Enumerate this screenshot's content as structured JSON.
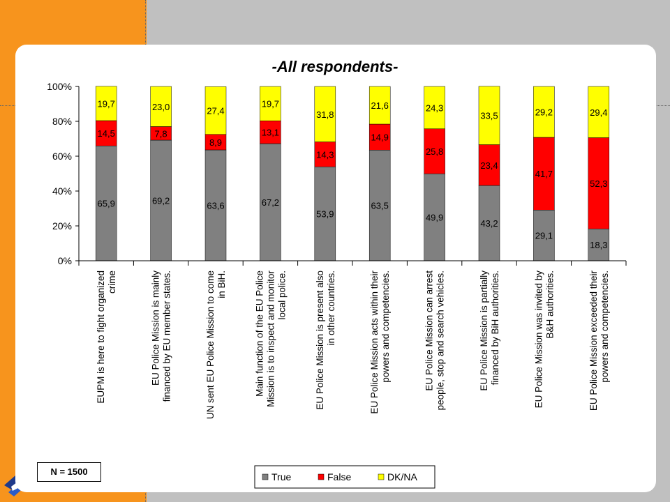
{
  "chart_data": {
    "type": "bar",
    "stacked": true,
    "percent": true,
    "title": "-All respondents-",
    "categories": [
      [
        "EUPM is here to fight organized",
        "crime"
      ],
      [
        "EU Police Mission is mainly",
        "financed by EU member states."
      ],
      [
        "UN sent EU Police Mission to come",
        "in BiH."
      ],
      [
        "Main function of the EU Police",
        "Mission is to inspect and monitor",
        "local police."
      ],
      [
        "EU Police Mission is present also",
        "in other countries."
      ],
      [
        "EU Police Mission acts within their",
        "powers and competencies."
      ],
      [
        "EU Police Mission can arrest",
        "people, stop and search vehicles."
      ],
      [
        "EU Police Mission is partially",
        "financed by BiH authorities."
      ],
      [
        "EU Police Mission was invited by",
        "B&H authorities."
      ],
      [
        "EU Police Mission exceeded their",
        "powers and competencies."
      ]
    ],
    "series": [
      {
        "name": "True",
        "color": "#808080",
        "values": [
          65.9,
          69.2,
          63.6,
          67.2,
          53.9,
          63.5,
          49.9,
          43.2,
          29.1,
          18.3
        ],
        "labels": [
          "65,9",
          "69,2",
          "63,6",
          "67,2",
          "53,9",
          "63,5",
          "49,9",
          "43,2",
          "29,1",
          "18,3"
        ]
      },
      {
        "name": "False",
        "color": "#ff0000",
        "values": [
          14.5,
          7.8,
          8.9,
          13.1,
          14.3,
          14.9,
          25.8,
          23.4,
          41.7,
          52.3
        ],
        "labels": [
          "14,5",
          "7,8",
          "8,9",
          "13,1",
          "14,3",
          "14,9",
          "25,8",
          "23,4",
          "41,7",
          "52,3"
        ]
      },
      {
        "name": "DK/NA",
        "color": "#ffff00",
        "values": [
          19.7,
          23.0,
          27.4,
          19.7,
          31.8,
          21.6,
          24.3,
          33.5,
          29.2,
          29.4
        ],
        "labels": [
          "19,7",
          "23,0",
          "27,4",
          "19,7",
          "31,8",
          "21,6",
          "24,3",
          "33,5",
          "29,2",
          "29,4"
        ]
      }
    ],
    "yticks": [
      "0%",
      "20%",
      "40%",
      "60%",
      "80%",
      "100%"
    ],
    "ylim": [
      0,
      100
    ],
    "legend_position": "bottom",
    "note": "N = 1500"
  }
}
